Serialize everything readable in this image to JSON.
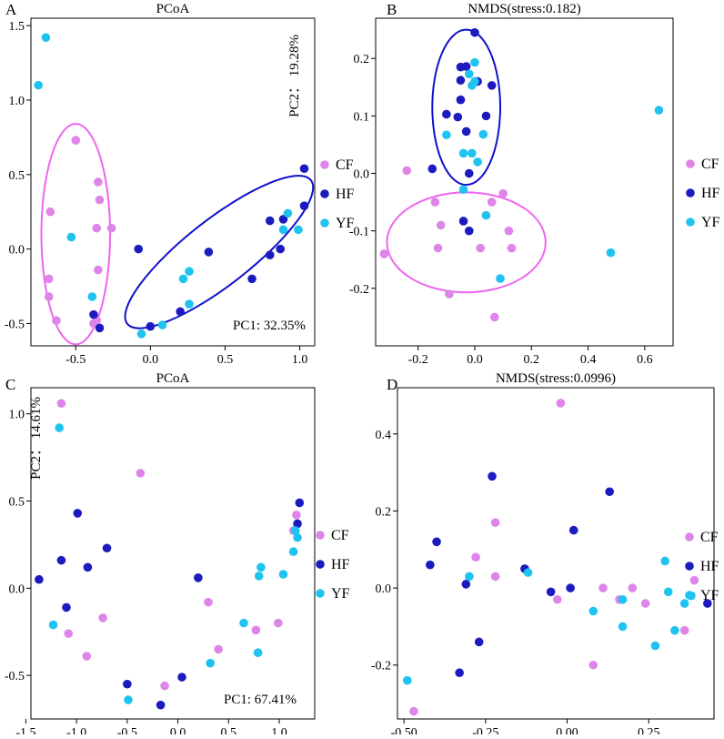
{
  "colors": {
    "CF": "#dd85e8",
    "HF": "#1b1bbf",
    "YF": "#1fc3ef",
    "CF_ellipse": "#ee66ee",
    "HF_ellipse": "#1010cc"
  },
  "legend": [
    "CF",
    "HF",
    "YF"
  ],
  "chart_data": [
    {
      "panel": "A",
      "type": "scatter",
      "title": "PCoA",
      "xlim": [
        -0.8,
        1.1
      ],
      "ylim": [
        -0.65,
        1.55
      ],
      "xticks": [
        "-0.5",
        "0.0",
        "0.5",
        "1.0"
      ],
      "xtick_values": [
        -0.5,
        0,
        0.5,
        1.0
      ],
      "yticks": [
        "-0.5",
        "0.0",
        "0.5",
        "1.0",
        "1.5"
      ],
      "ytick_values": [
        -0.5,
        0,
        0.5,
        1.0,
        1.5
      ],
      "annotations": {
        "pc1": "PC1: 32.35%",
        "pc2": "PC2： 19.28%"
      },
      "ellipses": [
        {
          "group": "CF",
          "cx": -0.5,
          "cy": 0.1,
          "rx": 0.23,
          "ry": 0.74,
          "angle": 0
        },
        {
          "group": "HF",
          "cx": 0.46,
          "cy": -0.02,
          "rx": 0.78,
          "ry": 0.22,
          "angle": -38
        }
      ],
      "series": [
        {
          "name": "CF",
          "points": [
            [
              -0.5,
              0.73
            ],
            [
              -0.35,
              0.45
            ],
            [
              -0.34,
              0.33
            ],
            [
              -0.67,
              0.25
            ],
            [
              -0.36,
              0.14
            ],
            [
              -0.26,
              0.14
            ],
            [
              -0.68,
              -0.2
            ],
            [
              -0.35,
              -0.14
            ],
            [
              -0.68,
              -0.32
            ],
            [
              -0.63,
              -0.48
            ],
            [
              -0.38,
              -0.5
            ],
            [
              -0.36,
              -0.48
            ]
          ]
        },
        {
          "name": "HF",
          "points": [
            [
              -0.08,
              0.0
            ],
            [
              1.03,
              0.54
            ],
            [
              0.89,
              0.2
            ],
            [
              0.8,
              0.19
            ],
            [
              1.03,
              0.29
            ],
            [
              0.39,
              -0.02
            ],
            [
              0.87,
              0.0
            ],
            [
              0.8,
              -0.04
            ],
            [
              0.68,
              -0.2
            ],
            [
              0.2,
              -0.42
            ],
            [
              -0.38,
              -0.44
            ],
            [
              -0.34,
              -0.53
            ],
            [
              0.0,
              -0.52
            ]
          ]
        },
        {
          "name": "YF",
          "points": [
            [
              -0.7,
              1.42
            ],
            [
              -0.75,
              1.1
            ],
            [
              -0.53,
              0.08
            ],
            [
              0.92,
              0.24
            ],
            [
              0.89,
              0.13
            ],
            [
              0.99,
              0.13
            ],
            [
              0.26,
              -0.15
            ],
            [
              0.22,
              -0.2
            ],
            [
              -0.39,
              -0.32
            ],
            [
              0.26,
              -0.37
            ],
            [
              0.08,
              -0.51
            ],
            [
              -0.06,
              -0.57
            ]
          ]
        }
      ]
    },
    {
      "panel": "B",
      "type": "scatter",
      "title": "NMDS(stress:0.182)",
      "xlim": [
        -0.35,
        0.7
      ],
      "ylim": [
        -0.3,
        0.27
      ],
      "xticks": [
        "-0.2",
        "0.0",
        "0.2",
        "0.4",
        "0.6"
      ],
      "xtick_values": [
        -0.2,
        0,
        0.2,
        0.4,
        0.6
      ],
      "yticks": [
        "-0.2",
        "-0.1",
        "0.0",
        "0.1",
        "0.2"
      ],
      "ytick_values": [
        -0.2,
        -0.1,
        0,
        0.1,
        0.2
      ],
      "ellipses": [
        {
          "group": "HF",
          "cx": -0.03,
          "cy": 0.115,
          "rx": 0.12,
          "ry": 0.135,
          "angle": 0
        },
        {
          "group": "CF",
          "cx": -0.03,
          "cy": -0.12,
          "rx": 0.28,
          "ry": 0.087,
          "angle": 0
        }
      ],
      "series": [
        {
          "name": "CF",
          "points": [
            [
              -0.24,
              0.005
            ],
            [
              -0.32,
              -0.14
            ],
            [
              -0.14,
              -0.05
            ],
            [
              -0.12,
              -0.09
            ],
            [
              -0.13,
              -0.13
            ],
            [
              0.06,
              -0.05
            ],
            [
              0.1,
              -0.035
            ],
            [
              0.12,
              -0.1
            ],
            [
              0.13,
              -0.13
            ],
            [
              0.02,
              -0.13
            ],
            [
              -0.09,
              -0.21
            ],
            [
              0.07,
              -0.25
            ]
          ]
        },
        {
          "name": "HF",
          "points": [
            [
              0.0,
              0.245
            ],
            [
              -0.03,
              0.186
            ],
            [
              -0.05,
              0.185
            ],
            [
              -0.05,
              0.162
            ],
            [
              0.01,
              0.16
            ],
            [
              0.06,
              0.153
            ],
            [
              -0.05,
              0.128
            ],
            [
              -0.1,
              0.103
            ],
            [
              -0.06,
              0.098
            ],
            [
              0.04,
              0.1
            ],
            [
              -0.03,
              0.073
            ],
            [
              -0.15,
              0.008
            ],
            [
              -0.02,
              0.0
            ],
            [
              -0.04,
              -0.083
            ],
            [
              -0.02,
              -0.1
            ]
          ]
        },
        {
          "name": "YF",
          "points": [
            [
              0.0,
              0.193
            ],
            [
              -0.02,
              0.173
            ],
            [
              -0.01,
              0.153
            ],
            [
              0.0,
              0.16
            ],
            [
              0.03,
              0.068
            ],
            [
              -0.1,
              0.067
            ],
            [
              -0.04,
              0.035
            ],
            [
              -0.01,
              0.035
            ],
            [
              0.01,
              0.02
            ],
            [
              -0.04,
              -0.028
            ],
            [
              0.04,
              -0.073
            ],
            [
              0.65,
              0.11
            ],
            [
              0.48,
              -0.138
            ],
            [
              0.09,
              -0.183
            ]
          ]
        }
      ]
    },
    {
      "panel": "C",
      "type": "scatter",
      "title": "PCoA",
      "xlim": [
        -1.45,
        1.35
      ],
      "ylim": [
        -0.75,
        1.15
      ],
      "xticks": [
        "-1.5",
        "-1.0",
        "-0.5",
        "0.0",
        "0.5",
        "1.0"
      ],
      "xtick_values": [
        -1.5,
        -1.0,
        -0.5,
        0,
        0.5,
        1.0
      ],
      "yticks": [
        "-0.5",
        "0.0",
        "0.5",
        "1.0"
      ],
      "ytick_values": [
        -0.5,
        0,
        0.5,
        1.0
      ],
      "annotations": {
        "pc1": "PC1: 67.41%",
        "pc2": "PC2： 14.61%"
      },
      "series": [
        {
          "name": "CF",
          "points": [
            [
              -1.15,
              1.06
            ],
            [
              -0.37,
              0.66
            ],
            [
              -1.08,
              -0.26
            ],
            [
              -0.74,
              -0.17
            ],
            [
              -0.9,
              -0.39
            ],
            [
              0.3,
              -0.08
            ],
            [
              0.4,
              -0.35
            ],
            [
              -0.13,
              -0.56
            ],
            [
              0.77,
              -0.24
            ],
            [
              0.99,
              -0.2
            ],
            [
              1.17,
              0.42
            ],
            [
              1.14,
              0.33
            ]
          ]
        },
        {
          "name": "HF",
          "points": [
            [
              -0.99,
              0.43
            ],
            [
              -0.7,
              0.23
            ],
            [
              -1.15,
              0.16
            ],
            [
              -0.89,
              0.12
            ],
            [
              -1.37,
              0.05
            ],
            [
              -1.1,
              -0.11
            ],
            [
              1.2,
              0.49
            ],
            [
              1.18,
              0.37
            ],
            [
              0.2,
              0.06
            ],
            [
              0.04,
              -0.51
            ],
            [
              -0.5,
              -0.55
            ],
            [
              -0.17,
              -0.67
            ]
          ]
        },
        {
          "name": "YF",
          "points": [
            [
              -1.17,
              0.92
            ],
            [
              -1.23,
              -0.21
            ],
            [
              1.16,
              0.33
            ],
            [
              1.18,
              0.29
            ],
            [
              1.14,
              0.21
            ],
            [
              1.04,
              0.08
            ],
            [
              0.82,
              0.12
            ],
            [
              0.8,
              0.07
            ],
            [
              0.65,
              -0.2
            ],
            [
              0.32,
              -0.43
            ],
            [
              0.79,
              -0.37
            ],
            [
              -0.49,
              -0.64
            ]
          ]
        }
      ]
    },
    {
      "panel": "D",
      "type": "scatter",
      "title": "NMDS(stress:0.0996)",
      "xlim": [
        -0.52,
        0.45
      ],
      "ylim": [
        -0.34,
        0.52
      ],
      "xticks": [
        "-0.50",
        "-0.25",
        "0.00",
        "0.25"
      ],
      "xtick_values": [
        -0.5,
        -0.25,
        0,
        0.25
      ],
      "yticks": [
        "-0.2",
        "0.0",
        "0.2",
        "0.4"
      ],
      "ytick_values": [
        -0.2,
        0,
        0.2,
        0.4
      ],
      "series": [
        {
          "name": "CF",
          "points": [
            [
              -0.02,
              0.48
            ],
            [
              -0.22,
              0.17
            ],
            [
              -0.28,
              0.08
            ],
            [
              -0.22,
              0.03
            ],
            [
              -0.03,
              -0.03
            ],
            [
              0.11,
              0.0
            ],
            [
              0.2,
              0.0
            ],
            [
              0.16,
              -0.03
            ],
            [
              0.24,
              -0.04
            ],
            [
              0.39,
              0.02
            ],
            [
              0.36,
              -0.11
            ],
            [
              0.08,
              -0.2
            ],
            [
              -0.47,
              -0.32
            ]
          ]
        },
        {
          "name": "HF",
          "points": [
            [
              -0.23,
              0.29
            ],
            [
              0.13,
              0.25
            ],
            [
              0.02,
              0.15
            ],
            [
              -0.4,
              0.12
            ],
            [
              -0.42,
              0.06
            ],
            [
              -0.31,
              0.01
            ],
            [
              -0.13,
              0.05
            ],
            [
              -0.05,
              -0.01
            ],
            [
              0.01,
              0.0
            ],
            [
              0.43,
              -0.04
            ],
            [
              -0.27,
              -0.14
            ],
            [
              -0.33,
              -0.22
            ]
          ]
        },
        {
          "name": "YF",
          "points": [
            [
              -0.3,
              0.03
            ],
            [
              -0.12,
              0.04
            ],
            [
              0.3,
              0.07
            ],
            [
              0.31,
              -0.01
            ],
            [
              0.38,
              -0.02
            ],
            [
              0.36,
              -0.04
            ],
            [
              0.17,
              -0.03
            ],
            [
              0.08,
              -0.06
            ],
            [
              0.17,
              -0.1
            ],
            [
              0.33,
              -0.11
            ],
            [
              0.27,
              -0.15
            ],
            [
              -0.49,
              -0.24
            ]
          ]
        }
      ]
    }
  ]
}
